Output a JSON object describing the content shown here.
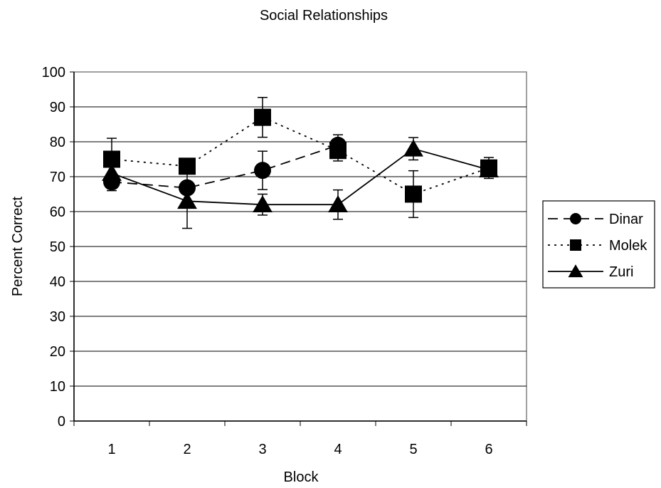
{
  "chart_data": {
    "type": "line",
    "title": "Social Relationships",
    "xlabel": "Block",
    "ylabel": "Percent Correct",
    "categories": [
      "1",
      "2",
      "3",
      "4",
      "5",
      "6"
    ],
    "ylim": [
      0,
      100
    ],
    "yticks": [
      "0",
      "10",
      "20",
      "30",
      "40",
      "50",
      "60",
      "70",
      "80",
      "90",
      "100"
    ],
    "grid": "horizontal",
    "legend_position": "right",
    "series": [
      {
        "name": "Dinar",
        "marker": "circle",
        "line_style": "dashed",
        "values": [
          68.5,
          66.8,
          71.8,
          79.0,
          null,
          null
        ],
        "error": [
          2.5,
          1.5,
          5.5,
          3.0,
          null,
          null
        ]
      },
      {
        "name": "Molek",
        "marker": "square",
        "line_style": "dotted",
        "values": [
          75.0,
          73.0,
          87.0,
          77.5,
          65.0,
          72.5
        ],
        "error": [
          6.0,
          2.0,
          5.7,
          3.0,
          6.7,
          3.0
        ]
      },
      {
        "name": "Zuri",
        "marker": "triangle",
        "line_style": "solid",
        "values": [
          71.0,
          63.0,
          62.0,
          62.0,
          78.0,
          72.0
        ],
        "error": [
          null,
          7.8,
          3.0,
          4.2,
          3.2,
          null
        ]
      }
    ]
  }
}
